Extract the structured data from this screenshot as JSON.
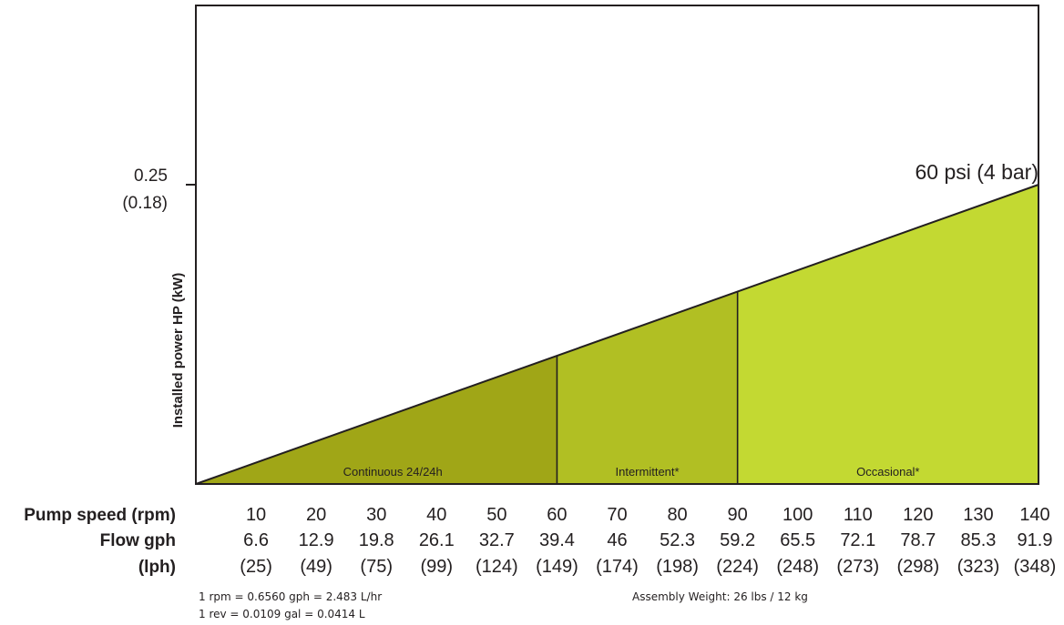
{
  "chart_data": {
    "type": "area",
    "curve_label": "60 psi (4 bar)",
    "ylabel": "Installed power HP (kW)",
    "y_tick": {
      "value": 0.25,
      "label": "0.25",
      "sublabel": "(0.18)"
    },
    "ylim": [
      0,
      0.25
    ],
    "xlim": [
      0,
      140
    ],
    "line": {
      "x": [
        0,
        140
      ],
      "y": [
        0,
        0.25
      ]
    },
    "zones": [
      {
        "label": "Continuous 24/24h",
        "from": 0,
        "to": 60,
        "color": "#a0a617"
      },
      {
        "label": "Intermittent*",
        "from": 60,
        "to": 90,
        "color": "#b1bf23"
      },
      {
        "label": "Occasional*",
        "from": 90,
        "to": 140,
        "color": "#c3d932"
      }
    ],
    "row_labels": {
      "speed": "Pump speed (rpm)",
      "gph": "Flow gph",
      "lph": "(lph)"
    },
    "speed_rpm": [
      10,
      20,
      30,
      40,
      50,
      60,
      70,
      80,
      90,
      100,
      110,
      120,
      130,
      140
    ],
    "flow_gph": [
      "6.6",
      "12.9",
      "19.8",
      "26.1",
      "32.7",
      "39.4",
      "46",
      "52.3",
      "59.2",
      "65.5",
      "72.1",
      "78.7",
      "85.3",
      "91.9"
    ],
    "flow_lph": [
      "(25)",
      "(49)",
      "(75)",
      "(99)",
      "(124)",
      "(149)",
      "(174)",
      "(198)",
      "(224)",
      "(248)",
      "(273)",
      "(298)",
      "(323)",
      "(348)"
    ]
  },
  "notes": {
    "conversion_1": "1 rpm = 0.6560 gph = 2.483 L/hr",
    "conversion_2": "1 rev = 0.0109 gal = 0.0414 L",
    "weight": "Assembly Weight: 26 lbs / 12 kg"
  }
}
